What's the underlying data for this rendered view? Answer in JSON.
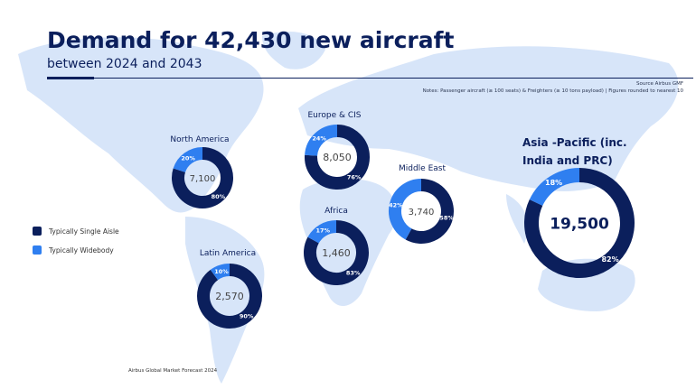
{
  "header": {
    "title": "Demand for 42,430 new aircraft",
    "subtitle": "between 2024 and 2043"
  },
  "source": "Source Airbus GMF",
  "notes": "Notes: Passenger aircraft (≥ 100 seats) & Freighters (≥ 10 tons payload) | Figures rounded to nearest 10",
  "footer": "Airbus Global Market Forecast 2024",
  "colors": {
    "single_aisle": "#0b1f5c",
    "widebody": "#2f7ff0",
    "map": "#d7e5f9",
    "title": "#0b1f5c"
  },
  "chart_data": {
    "type": "donut",
    "title": "Demand for 42,430 new aircraft",
    "subtitle": "between 2024 and 2043",
    "legend": [
      "Typically Single Aisle",
      "Typically Widebody"
    ],
    "legend_placement": "left",
    "regions": [
      {
        "name": "North America",
        "total": "7,100",
        "single_aisle_pct": 80,
        "widebody_pct": 20
      },
      {
        "name": "Europe & CIS",
        "total": "8,050",
        "single_aisle_pct": 76,
        "widebody_pct": 24
      },
      {
        "name": "Middle East",
        "total": "3,740",
        "single_aisle_pct": 58,
        "widebody_pct": 42
      },
      {
        "name": "Africa",
        "total": "1,460",
        "single_aisle_pct": 83,
        "widebody_pct": 17
      },
      {
        "name": "Latin America",
        "total": "2,570",
        "single_aisle_pct": 90,
        "widebody_pct": 10
      },
      {
        "name": "Asia -Pacific (inc. India and PRC)",
        "total": "19,500",
        "single_aisle_pct": 82,
        "widebody_pct": 18
      }
    ]
  }
}
